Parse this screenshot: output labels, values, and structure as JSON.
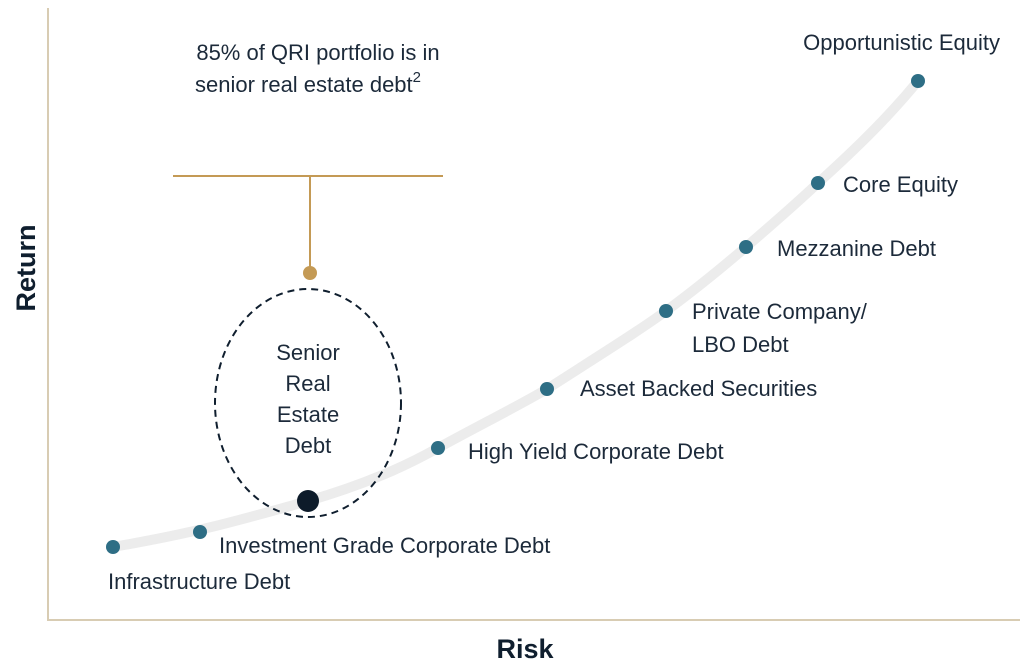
{
  "axes": {
    "x_label": "Risk",
    "y_label": "Return"
  },
  "callout": {
    "lines": [
      "85% of QRI portfolio is in",
      "senior real estate debt"
    ],
    "superscript": "2"
  },
  "highlight": {
    "lines": [
      "Senior",
      "Real",
      "Estate",
      "Debt"
    ]
  },
  "nodes": [
    {
      "label_lines": [
        "Infrastructure Debt"
      ]
    },
    {
      "label_lines": [
        "Investment Grade Corporate Debt"
      ]
    },
    {
      "label_lines": [
        "High Yield Corporate Debt"
      ]
    },
    {
      "label_lines": [
        "Asset Backed Securities"
      ]
    },
    {
      "label_lines": [
        "Private Company/",
        "LBO Debt"
      ]
    },
    {
      "label_lines": [
        "Mezzanine Debt"
      ]
    },
    {
      "label_lines": [
        "Core Equity"
      ]
    },
    {
      "label_lines": [
        "Opportunistic Equity"
      ]
    }
  ]
}
